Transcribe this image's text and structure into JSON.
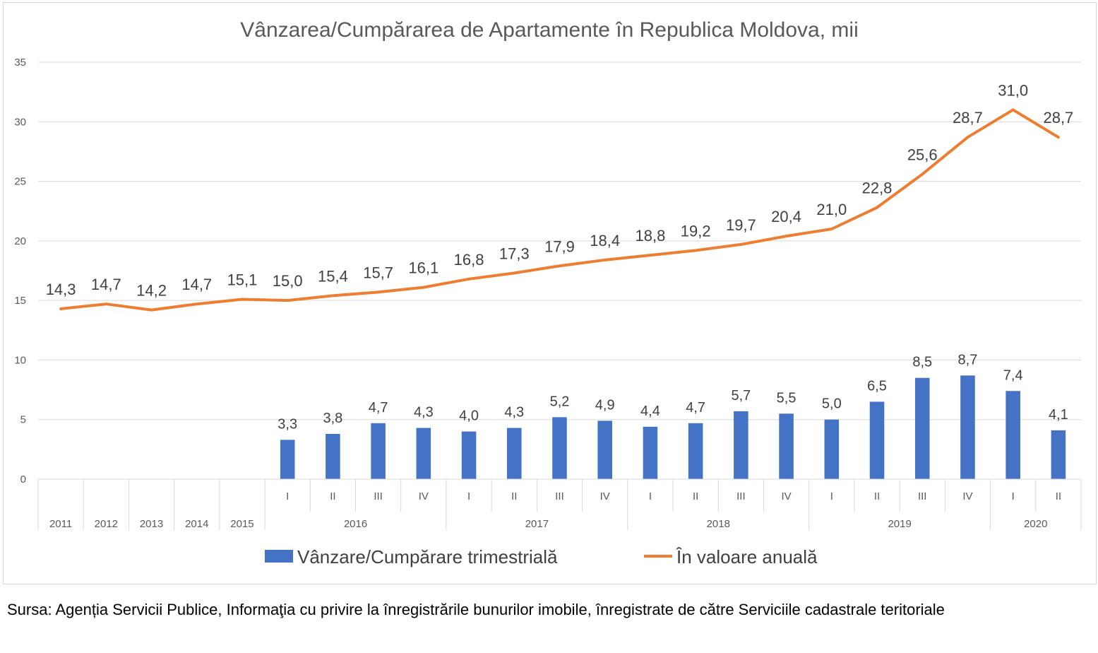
{
  "chart_data": {
    "type": "bar+line",
    "title": "Vânzarea/Cumpărarea de Apartamente în Republica Moldova, mii",
    "ylim": [
      0,
      35
    ],
    "yticks": [
      0,
      5,
      10,
      15,
      20,
      25,
      30,
      35
    ],
    "grid": true,
    "legend_position": "bottom",
    "categories": [
      {
        "label": "",
        "group": "2011"
      },
      {
        "label": "",
        "group": "2012"
      },
      {
        "label": "",
        "group": "2013"
      },
      {
        "label": "",
        "group": "2014"
      },
      {
        "label": "",
        "group": "2015"
      },
      {
        "label": "I",
        "group": "2016"
      },
      {
        "label": "II",
        "group": "2016"
      },
      {
        "label": "III",
        "group": "2016"
      },
      {
        "label": "IV",
        "group": "2016"
      },
      {
        "label": "I",
        "group": "2017"
      },
      {
        "label": "II",
        "group": "2017"
      },
      {
        "label": "III",
        "group": "2017"
      },
      {
        "label": "IV",
        "group": "2017"
      },
      {
        "label": "I",
        "group": "2018"
      },
      {
        "label": "II",
        "group": "2018"
      },
      {
        "label": "III",
        "group": "2018"
      },
      {
        "label": "IV",
        "group": "2018"
      },
      {
        "label": "I",
        "group": "2019"
      },
      {
        "label": "II",
        "group": "2019"
      },
      {
        "label": "III",
        "group": "2019"
      },
      {
        "label": "IV",
        "group": "2019"
      },
      {
        "label": "I",
        "group": "2020"
      },
      {
        "label": "II",
        "group": "2020"
      }
    ],
    "groups": [
      "2011",
      "2012",
      "2013",
      "2014",
      "2015",
      "2016",
      "2017",
      "2018",
      "2019",
      "2020"
    ],
    "series": [
      {
        "name": "Vânzare/Cumpărare trimestrială",
        "kind": "bar",
        "color": "#4472c4",
        "values": [
          null,
          null,
          null,
          null,
          null,
          3.3,
          3.8,
          4.7,
          4.3,
          4.0,
          4.3,
          5.2,
          4.9,
          4.4,
          4.7,
          5.7,
          5.5,
          5.0,
          6.5,
          8.5,
          8.7,
          7.4,
          4.1
        ],
        "labels": [
          "",
          "",
          "",
          "",
          "",
          "3,3",
          "3,8",
          "4,7",
          "4,3",
          "4,0",
          "4,3",
          "5,2",
          "4,9",
          "4,4",
          "4,7",
          "5,7",
          "5,5",
          "5,0",
          "6,5",
          "8,5",
          "8,7",
          "7,4",
          "4,1"
        ]
      },
      {
        "name": "În valoare anuală",
        "kind": "line",
        "color": "#ed7d31",
        "values": [
          14.3,
          14.7,
          14.2,
          14.7,
          15.1,
          15.0,
          15.4,
          15.7,
          16.1,
          16.8,
          17.3,
          17.9,
          18.4,
          18.8,
          19.2,
          19.7,
          20.4,
          21.0,
          22.8,
          25.6,
          28.7,
          31.0,
          28.7
        ],
        "labels": [
          "14,3",
          "14,7",
          "14,2",
          "14,7",
          "15,1",
          "15,0",
          "15,4",
          "15,7",
          "16,1",
          "16,8",
          "17,3",
          "17,9",
          "18,4",
          "18,8",
          "19,2",
          "19,7",
          "20,4",
          "21,0",
          "22,8",
          "25,6",
          "28,7",
          "31,0",
          "28,7"
        ]
      }
    ]
  },
  "source_note": "Sursa: Agenția Servicii Publice, Informaţia cu privire la înregistrările bunurilor imobile, înregistrate de către Serviciile cadastrale teritoriale"
}
